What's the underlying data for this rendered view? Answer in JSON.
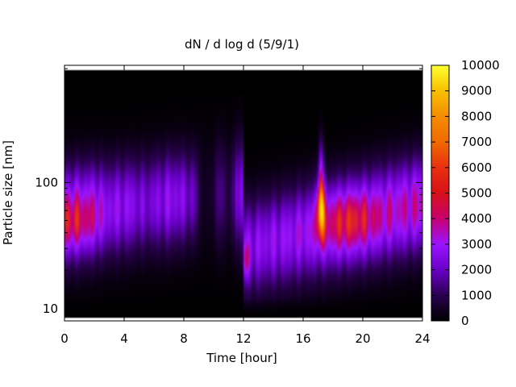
{
  "chart_data": {
    "type": "heatmap",
    "title": "dN / d log d (5/9/1)",
    "xlabel": "Time [hour]",
    "ylabel": "Particle size [nm]",
    "xlim": [
      0,
      24
    ],
    "ylim": [
      8,
      850
    ],
    "y_scale": "log",
    "x_ticks": [
      0,
      4,
      8,
      12,
      16,
      20,
      24
    ],
    "y_ticks": [
      10,
      100
    ],
    "colorbar": {
      "min": 0,
      "max": 10000,
      "ticks": [
        0,
        1000,
        2000,
        3000,
        4000,
        5000,
        6000,
        7000,
        8000,
        9000,
        10000
      ],
      "palette": "black-purple-red-orange-yellow"
    },
    "colormap_stops": [
      "#000000",
      "#2a0050",
      "#6a00c8",
      "#9a14ff",
      "#c80070",
      "#e83010",
      "#f06a00",
      "#f8b000",
      "#ffe800",
      "#ffff40"
    ],
    "features": [
      {
        "x": 0,
        "y_nm": 45,
        "value": 5200
      },
      {
        "x": 2,
        "y_nm": 50,
        "value": 4200
      },
      {
        "x": 6,
        "y_nm": 80,
        "value": 2600
      },
      {
        "x": 9.5,
        "y_nm": 100,
        "value": 300
      },
      {
        "x": 12.2,
        "y_nm": 25,
        "value": 5000
      },
      {
        "x": 16,
        "y_nm": 35,
        "value": 4800
      },
      {
        "x": 17.2,
        "y_nm": 65,
        "value": 7800
      },
      {
        "x": 19,
        "y_nm": 50,
        "value": 5500
      },
      {
        "x": 21.5,
        "y_nm": 55,
        "value": 4600
      }
    ]
  }
}
